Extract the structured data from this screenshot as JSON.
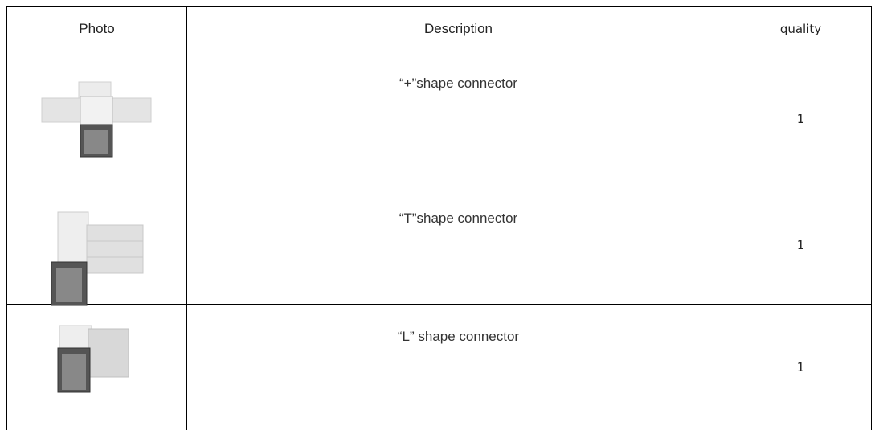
{
  "table": {
    "header": [
      "Photo",
      "Description",
      "quality"
    ],
    "rows": [
      [
        "“+”shape connector",
        1
      ],
      [
        "“T”shape connector",
        1
      ],
      [
        "“L” shape connector",
        1
      ]
    ]
  }
}
